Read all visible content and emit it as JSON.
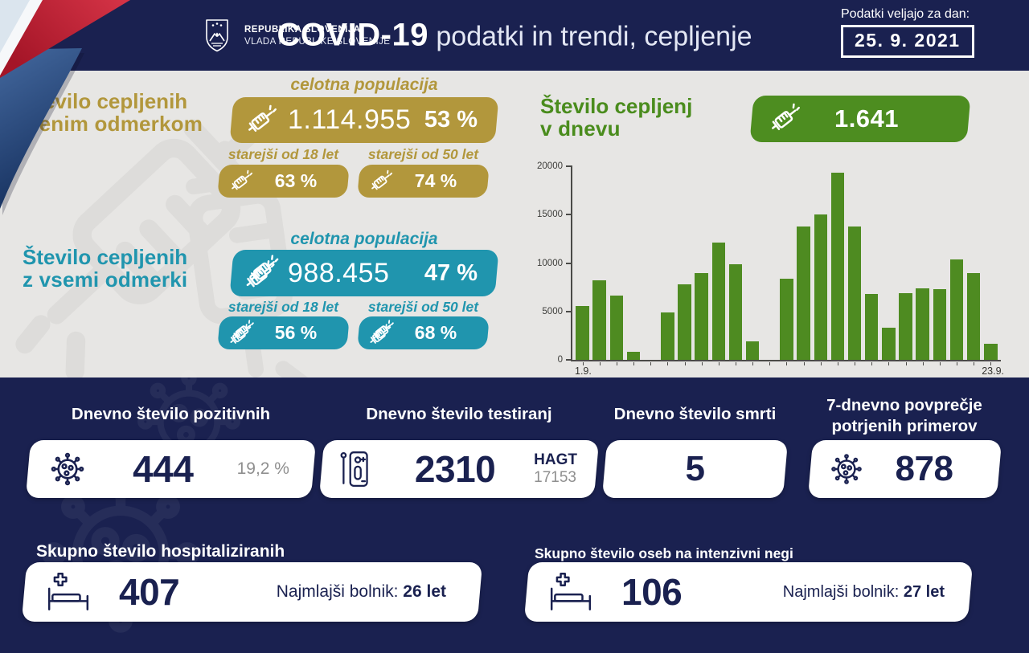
{
  "header": {
    "republic_label": "REPUBLIKA SLOVENIJA",
    "government_label": "VLADA REPUBLIKE SLOVENIJE",
    "title_strong": "COVID-19",
    "title_rest": " podatki in trendi, cepljenje",
    "date_label": "Podatki veljajo za dan:",
    "date_value": "25. 9. 2021"
  },
  "first_dose": {
    "heading_line1": "Število cepljenih",
    "heading_line2": "z enim odmerkom",
    "population_label": "celotna populacija",
    "total_count": "1.114.955",
    "total_percent": "53 %",
    "over18_label": "starejši od 18 let",
    "over18_percent": "63 %",
    "over50_label": "starejši od 50 let",
    "over50_percent": "74 %"
  },
  "full_dose": {
    "heading_line1": "Število cepljenih",
    "heading_line2": "z vsemi odmerki",
    "population_label": "celotna populacija",
    "total_count": "988.455",
    "total_percent": "47 %",
    "over18_label": "starejši od 18 let",
    "over18_percent": "56 %",
    "over50_label": "starejši od 50 let",
    "over50_percent": "68 %"
  },
  "daily_vaccinations": {
    "heading_line1": "Število cepljenj",
    "heading_line2": "v dnevu",
    "badge_value": "1.641"
  },
  "chart_data": {
    "type": "bar",
    "title": "",
    "xlabel": "",
    "ylabel": "",
    "x_first_label": "1.9.",
    "x_last_label": "23.9.",
    "y_tick_labels": [
      "0",
      "5000",
      "10000",
      "15000",
      "20000"
    ],
    "ylim": [
      0,
      20000
    ],
    "grid": false,
    "legend": "none",
    "bar_color": "#4e8b21",
    "values": [
      5600,
      8200,
      6600,
      800,
      0,
      4900,
      7800,
      9000,
      12100,
      9900,
      1900,
      0,
      8400,
      13800,
      15000,
      19300,
      13800,
      6800,
      3300,
      6900,
      7400,
      7300,
      10400,
      9000,
      1700
    ]
  },
  "stats": {
    "positive": {
      "title": "Dnevno število pozitivnih",
      "value": "444",
      "percent": "19,2 %"
    },
    "tests": {
      "title": "Dnevno število testiranj",
      "value": "2310",
      "hagt_label": "HAGT",
      "hagt_value": "17153"
    },
    "deaths": {
      "title": "Dnevno število smrti",
      "value": "5"
    },
    "avg7": {
      "title_line1": "7-dnevno povprečje",
      "title_line2": "potrjenih primerov",
      "value": "878"
    }
  },
  "hospital": {
    "title": "Skupno število hospitaliziranih",
    "value": "407",
    "youngest_label": "Najmlajši bolnik: ",
    "youngest_value": "26 let"
  },
  "icu": {
    "title": "Skupno število oseb na intenzivni negi",
    "value": "106",
    "youngest_label": "Najmlajši bolnik: ",
    "youngest_value": "27 let"
  },
  "icons": {
    "vaccination": "syringe-icon",
    "vaccination_full": "double-syringe-icon",
    "virus": "virus-icon",
    "testing": "rapid-test-icon",
    "hospital": "hospital-bed-icon",
    "emblem": "slovenia-coat-of-arms"
  },
  "colors": {
    "navy": "#1a2150",
    "gold": "#b2973c",
    "teal": "#2095ae",
    "green_badge": "#4d8d20",
    "green_text": "#4a8c1d",
    "bar_green": "#4e8b21",
    "page_bg": "#e7e6e4",
    "card_bg": "#ffffff",
    "muted_text": "#8f8f8f"
  }
}
